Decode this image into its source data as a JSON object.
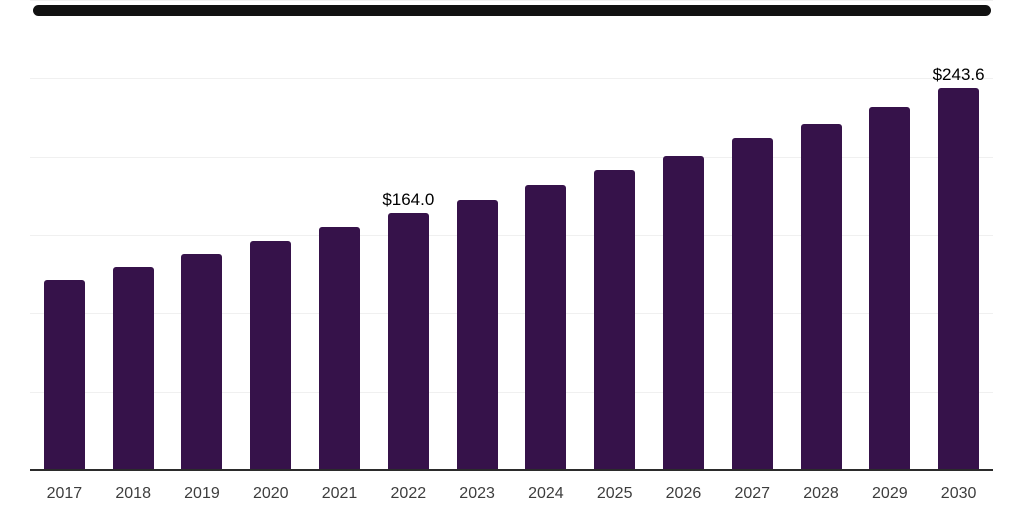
{
  "chart_data": {
    "type": "bar",
    "title": "",
    "xlabel": "",
    "ylabel": "",
    "categories": [
      "2017",
      "2018",
      "2019",
      "2020",
      "2021",
      "2022",
      "2023",
      "2024",
      "2025",
      "2026",
      "2027",
      "2028",
      "2029",
      "2030"
    ],
    "values": [
      121.3,
      129.6,
      137.9,
      146.2,
      155.1,
      164.0,
      172.3,
      181.9,
      191.5,
      200.4,
      211.9,
      220.9,
      231.9,
      243.6
    ],
    "value_labels": [
      "",
      "",
      "",
      "",
      "",
      "$164.0",
      "",
      "",
      "",
      "",
      "",
      "",
      "",
      "$243.6"
    ],
    "ylim": [
      0,
      300
    ],
    "ytick_step": 50,
    "yticks_visible": false,
    "grid": true,
    "legend": false,
    "colors": {
      "bar": "#36124A",
      "gridline": "#F0F0F0",
      "axis_line": "#2B2B2B",
      "tick_label": "#3D3D3D",
      "value_label": "#000000",
      "background": "#FFFFFF"
    }
  },
  "header_bar": {
    "color": "#111111"
  }
}
